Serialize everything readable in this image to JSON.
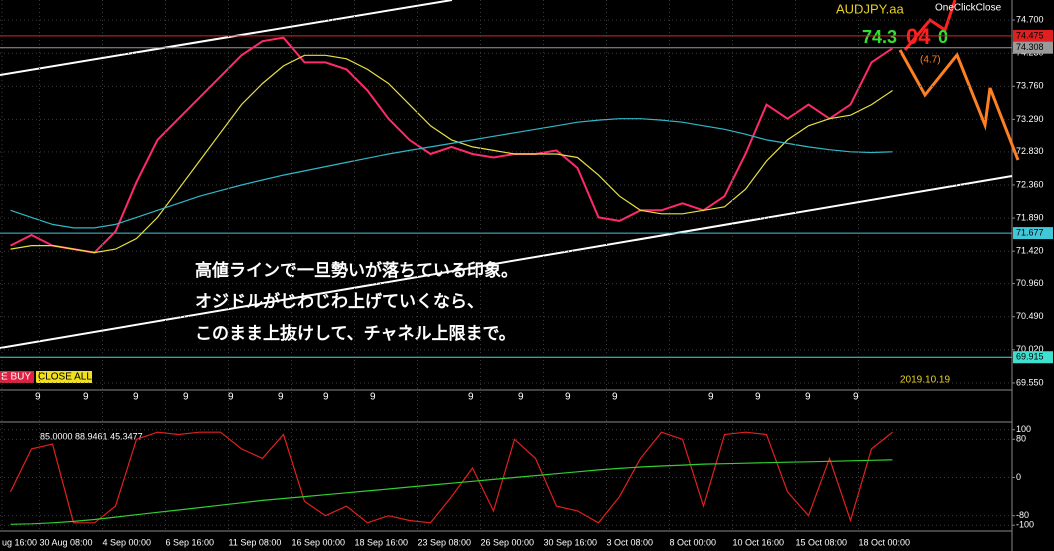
{
  "chart_data": [
    {
      "type": "line",
      "title": "AUDJPY.aa",
      "ylim": [
        69.45,
        74.985
      ],
      "yticks": [
        {
          "value": 74.7,
          "label": "74.700"
        },
        {
          "value": 74.23,
          "label": "74.230"
        },
        {
          "value": 73.76,
          "label": "73.760"
        },
        {
          "value": 73.29,
          "label": "73.290"
        },
        {
          "value": 72.83,
          "label": "72.830"
        },
        {
          "value": 72.36,
          "label": "72.360"
        },
        {
          "value": 71.89,
          "label": "71.890"
        },
        {
          "value": 71.42,
          "label": "71.420"
        },
        {
          "value": 70.96,
          "label": "70.960"
        },
        {
          "value": 70.49,
          "label": "70.490"
        },
        {
          "value": 70.02,
          "label": "70.020"
        },
        {
          "value": 69.55,
          "label": "69.550"
        }
      ],
      "grid": true,
      "price_lines": [
        {
          "value": 74.475,
          "color": "#e02020"
        },
        {
          "value": 74.308,
          "color": "#9a9a9a"
        },
        {
          "value": 71.677,
          "color": "#40c8d8"
        },
        {
          "value": 69.915,
          "color": "#40e0d0"
        }
      ],
      "series": [
        {
          "name": "close",
          "color": "#ff2a6a",
          "values": [
            71.5,
            71.65,
            71.5,
            71.45,
            71.4,
            71.7,
            72.4,
            73.0,
            73.3,
            73.6,
            73.9,
            74.2,
            74.4,
            74.45,
            74.1,
            74.1,
            74.0,
            73.7,
            73.3,
            73.0,
            72.8,
            72.9,
            72.8,
            72.75,
            72.8,
            72.8,
            72.85,
            72.6,
            71.9,
            71.85,
            72.0,
            72.0,
            72.1,
            72.0,
            72.2,
            72.8,
            73.5,
            73.3,
            73.5,
            73.3,
            73.5,
            74.1,
            74.3,
            null,
            null
          ]
        },
        {
          "name": "ma-fast",
          "color": "#e8e040",
          "values": [
            71.45,
            71.5,
            71.5,
            71.45,
            71.4,
            71.45,
            71.6,
            71.9,
            72.3,
            72.7,
            73.1,
            73.5,
            73.8,
            74.05,
            74.2,
            74.2,
            74.15,
            74.0,
            73.8,
            73.5,
            73.2,
            73.0,
            72.9,
            72.85,
            72.8,
            72.8,
            72.8,
            72.75,
            72.5,
            72.2,
            72.0,
            71.95,
            71.95,
            72.0,
            72.05,
            72.3,
            72.7,
            73.0,
            73.2,
            73.3,
            73.35,
            73.5,
            73.7,
            null,
            null
          ]
        },
        {
          "name": "ma-slow",
          "color": "#30b8c8",
          "values": [
            72.0,
            71.9,
            71.8,
            71.75,
            71.75,
            71.8,
            71.9,
            72.0,
            72.1,
            72.2,
            72.28,
            72.36,
            72.43,
            72.5,
            72.56,
            72.62,
            72.68,
            72.74,
            72.8,
            72.85,
            72.9,
            72.95,
            73.0,
            73.05,
            73.1,
            73.15,
            73.2,
            73.25,
            73.28,
            73.3,
            73.3,
            73.28,
            73.25,
            73.2,
            73.15,
            73.08,
            73.0,
            72.95,
            72.9,
            72.86,
            72.83,
            72.82,
            72.83,
            null,
            null
          ]
        }
      ]
    },
    {
      "type": "line",
      "title": "85.0000 88.9461 45.3477",
      "ylim": [
        -110,
        110
      ],
      "yticks": [
        100,
        80,
        0,
        -80,
        -100
      ],
      "grid": true,
      "categories": [
        null,
        "ug 16:00",
        null,
        null,
        "30 Aug 08:00",
        null,
        null,
        "4 Sep 00:00",
        null,
        null,
        "6 Sep 16:00",
        null,
        null,
        "11 Sep 08:00",
        null,
        null,
        "16 Sep 00:00",
        null,
        null,
        "18 Sep 16:00",
        null,
        null,
        "23 Sep 08:00",
        null,
        null,
        "26 Sep 00:00",
        null,
        null,
        "30 Sep 16:00",
        null,
        null,
        "3 Oct 08:00",
        null,
        null,
        "8 Oct 00:00",
        null,
        null,
        "10 Oct 16:00",
        null,
        null,
        "15 Oct 08:00",
        null,
        null,
        "18 Oct 00:00",
        null
      ],
      "series": [
        {
          "name": "oscillator",
          "color": "#e02020",
          "values": [
            -30,
            60,
            70,
            -95,
            -95,
            -60,
            80,
            95,
            90,
            95,
            95,
            60,
            40,
            90,
            -50,
            -80,
            -60,
            -95,
            -80,
            -90,
            -95,
            -40,
            20,
            -70,
            80,
            40,
            -60,
            -70,
            -95,
            -40,
            40,
            95,
            80,
            -60,
            90,
            95,
            90,
            -30,
            -80,
            40,
            -90,
            60,
            95,
            null,
            null
          ]
        },
        {
          "name": "trend",
          "color": "#30d030",
          "values": [
            -98,
            -97,
            -95,
            -92,
            -88,
            -83,
            -78,
            -73,
            -68,
            -63,
            -58,
            -53,
            -48,
            -44,
            -40,
            -36,
            -32,
            -28,
            -24,
            -20,
            -16,
            -12,
            -8,
            -4,
            0,
            4,
            8,
            12,
            16,
            19,
            22,
            24,
            26,
            28,
            29,
            30,
            31,
            32,
            33,
            34,
            35,
            36,
            37,
            null,
            null
          ]
        }
      ]
    }
  ],
  "ui": {
    "one_click_close": "OneClickClose",
    "bid_big": "74.3",
    "bid_pips": "04",
    "bid_last": "0",
    "spread": "(4.7)",
    "buy": "E BUY",
    "close_all": "CLOSE ALL",
    "date": "2019.10.19",
    "note": [
      "高値ラインで一旦勢いが落ちている印象。",
      "オジドルがじわじわ上げていくなら、",
      "このまま上抜けして、チャネル上限まで。"
    ],
    "signals": [
      "9",
      "9",
      "9",
      "9",
      "9",
      "9",
      "9",
      "9",
      "9",
      "9",
      "9",
      "9",
      "9",
      "9",
      "9",
      "9"
    ]
  }
}
